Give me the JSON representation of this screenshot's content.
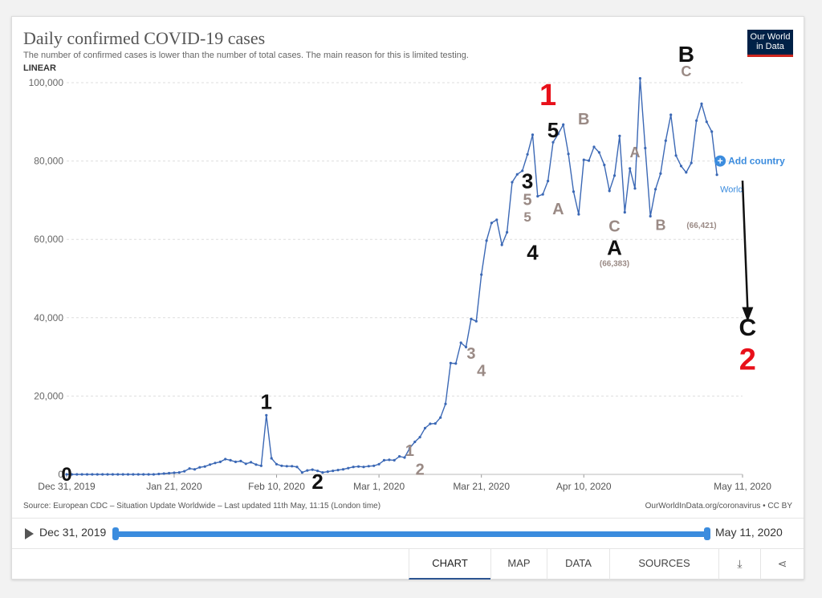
{
  "header": {
    "title": "Daily confirmed COVID-19 cases",
    "subtitle": "The number of confirmed cases is lower than the number of total cases. The main reason for this is limited testing.",
    "logo": "Our World in Data",
    "scale": "LINEAR"
  },
  "footer": {
    "source": "Source: European CDC – Situation Update Worldwide – Last updated 11th May, 11:15 (London time)",
    "url": "OurWorldInData.org/coronavirus • CC BY"
  },
  "timeline": {
    "start": "Dec 31, 2019",
    "end": "May 11, 2020",
    "play_icon": "play-icon"
  },
  "tabs": [
    {
      "label": "CHART",
      "active": true
    },
    {
      "label": "MAP"
    },
    {
      "label": "DATA"
    },
    {
      "label": "SOURCES"
    },
    {
      "icon": "download-icon",
      "glyph": "⤓"
    },
    {
      "icon": "share-icon",
      "glyph": "⋖"
    }
  ],
  "colors": {
    "series": "#3b68b5",
    "grid": "#dddddd",
    "add_country": "#3b8cde",
    "annotation_black": "#111111",
    "annotation_red": "#e8101a",
    "annotation_gray": "#9a8a85",
    "arrow": "#111111"
  },
  "chart_data": {
    "type": "line",
    "title": "Daily confirmed COVID-19 cases",
    "x_start": "2019-12-31",
    "x_end": "2020-05-11",
    "x_ticks": [
      "Dec 31, 2019",
      "Jan 21, 2020",
      "Feb 10, 2020",
      "Mar 1, 2020",
      "Mar 21, 2020",
      "Apr 10, 2020",
      "May 11, 2020"
    ],
    "y_ticks": [
      "0",
      "20,000",
      "40,000",
      "60,000",
      "80,000",
      "100,000"
    ],
    "ylim": [
      0,
      100000
    ],
    "grid": "horizontal",
    "series": [
      {
        "name": "World",
        "values": [
          0,
          0,
          0,
          0,
          0,
          0,
          0,
          0,
          0,
          0,
          0,
          0,
          0,
          0,
          0,
          0,
          0,
          0,
          100,
          200,
          300,
          400,
          500,
          800,
          1500,
          1300,
          1800,
          2000,
          2500,
          2900,
          3200,
          3900,
          3600,
          3200,
          3400,
          2700,
          3100,
          2500,
          2200,
          15100,
          4100,
          2600,
          2200,
          2100,
          2100,
          1900,
          500,
          1000,
          1200,
          900,
          500,
          700,
          900,
          1100,
          1300,
          1600,
          1900,
          2000,
          1900,
          2100,
          2200,
          2600,
          3600,
          3700,
          3600,
          4600,
          4300,
          6700,
          8300,
          9500,
          11800,
          12900,
          13000,
          14500,
          18000,
          28400,
          28300,
          33600,
          32500,
          39700,
          39100,
          51000,
          59700,
          64200,
          65000,
          58600,
          61800,
          74600,
          76600,
          77500,
          81700,
          86700,
          71000,
          71500,
          74900,
          84800,
          86900,
          89300,
          81800,
          72200,
          66400,
          80300,
          80100,
          83600,
          82200,
          79000,
          72400,
          76300,
          86400,
          66900,
          78100,
          73000,
          101100,
          83300,
          65900,
          72800,
          76800,
          85200,
          91800,
          81400,
          78700,
          77100,
          79500,
          90300,
          94600,
          90000,
          87500,
          76500
        ]
      }
    ],
    "series_label": "World",
    "add_country_label": "Add country",
    "annotations": [
      {
        "text": "0",
        "x": "2019-12-31",
        "y": -1600,
        "color": "black",
        "size": 24
      },
      {
        "text": "1",
        "x": "2020-02-08",
        "y": 16700,
        "color": "black",
        "size": 26
      },
      {
        "text": "2",
        "x": "2020-02-18",
        "y": -3700,
        "color": "black",
        "size": 26
      },
      {
        "text": "1",
        "x": "2020-03-07",
        "y": 4700,
        "color": "gray",
        "size": 20
      },
      {
        "text": "2",
        "x": "2020-03-09",
        "y": -100,
        "color": "gray",
        "size": 20
      },
      {
        "text": "3",
        "x": "2020-03-19",
        "y": 29500,
        "color": "gray",
        "size": 20
      },
      {
        "text": "4",
        "x": "2020-03-21",
        "y": 25100,
        "color": "gray",
        "size": 20
      },
      {
        "text": "3",
        "x": "2020-03-30",
        "y": 73100,
        "color": "black",
        "size": 26
      },
      {
        "text": "5",
        "x": "2020-03-30",
        "y": 68700,
        "color": "gray",
        "size": 20
      },
      {
        "text": "5",
        "x": "2020-03-30",
        "y": 64600,
        "color": "gray",
        "size": 17
      },
      {
        "text": "4",
        "x": "2020-03-31",
        "y": 54800,
        "color": "black",
        "size": 26
      },
      {
        "text": "1",
        "x": "2020-04-03",
        "y": 94300,
        "color": "red",
        "size": 38
      },
      {
        "text": "5",
        "x": "2020-04-04",
        "y": 86100,
        "color": "black",
        "size": 26
      },
      {
        "text": "A",
        "x": "2020-04-05",
        "y": 66400,
        "color": "gray",
        "size": 20
      },
      {
        "text": "B",
        "x": "2020-04-10",
        "y": 89300,
        "color": "gray",
        "size": 20
      },
      {
        "text": "C",
        "x": "2020-04-16",
        "y": 62000,
        "color": "gray",
        "size": 20
      },
      {
        "text": "A",
        "x": "2020-04-16",
        "y": 56000,
        "color": "black",
        "size": 26
      },
      {
        "text": "(66,383)",
        "x": "2020-04-16",
        "y": 53200,
        "color": "gray",
        "size": 10
      },
      {
        "text": "A",
        "x": "2020-04-20",
        "y": 80900,
        "color": "gray",
        "size": 18
      },
      {
        "text": "B",
        "x": "2020-04-25",
        "y": 62400,
        "color": "gray",
        "size": 18
      },
      {
        "text": "B",
        "x": "2020-04-30",
        "y": 105300,
        "color": "black",
        "size": 28
      },
      {
        "text": "C",
        "x": "2020-04-30",
        "y": 101600,
        "color": "gray",
        "size": 18
      },
      {
        "text": "(66,421)",
        "x": "2020-05-03",
        "y": 62900,
        "color": "gray",
        "size": 10
      },
      {
        "text": "C",
        "x": "2020-05-12",
        "y": 35400,
        "color": "black",
        "size": 30
      },
      {
        "text": "2",
        "x": "2020-05-12",
        "y": 26700,
        "color": "red",
        "size": 38
      }
    ],
    "arrow": {
      "from": {
        "x": "2020-05-11",
        "y": 75000
      },
      "to": {
        "x": "2020-05-12",
        "y": 39000
      }
    }
  }
}
